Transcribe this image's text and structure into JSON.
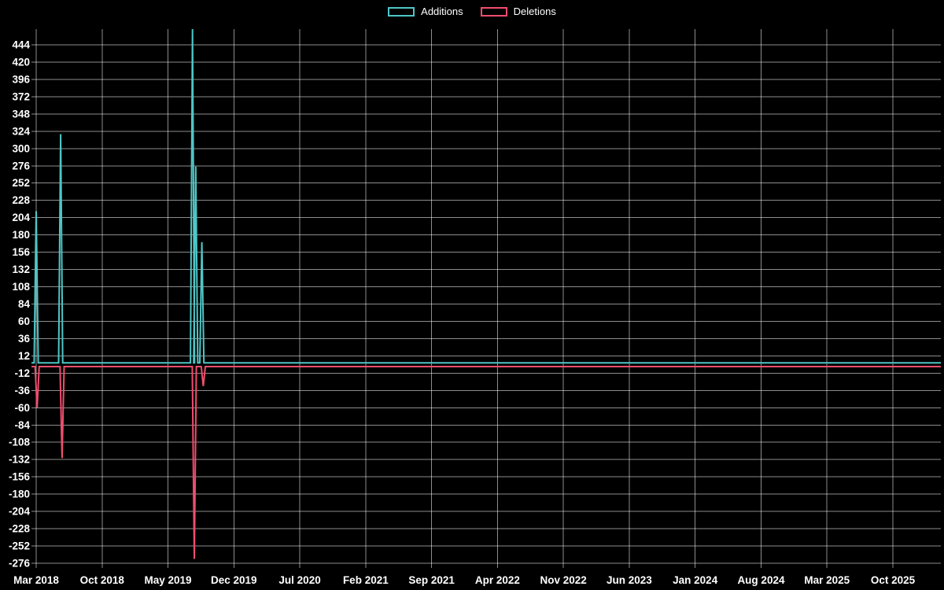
{
  "legend": {
    "items": [
      {
        "label": "Additions",
        "color": "#4fc6c6"
      },
      {
        "label": "Deletions",
        "color": "#ef4e6e"
      }
    ]
  },
  "chart_data": {
    "type": "line",
    "title": "",
    "background": "#000000",
    "grid": true,
    "legend_position": "top-center",
    "x_tick_labels": [
      "Mar 2018",
      "Oct 2018",
      "May 2019",
      "Dec 2019",
      "Jul 2020",
      "Feb 2021",
      "Sep 2021",
      "Apr 2022",
      "Nov 2022",
      "Jun 2023",
      "Jan 2024",
      "Aug 2024",
      "Mar 2025",
      "Oct 2025"
    ],
    "y_ticks": [
      444,
      420,
      396,
      372,
      348,
      324,
      300,
      276,
      252,
      228,
      204,
      180,
      156,
      132,
      108,
      84,
      60,
      36,
      12,
      -12,
      -36,
      -60,
      -84,
      -108,
      -132,
      -156,
      -180,
      -204,
      -228,
      -252,
      -276
    ],
    "ylim": [
      -282,
      466
    ],
    "y_tick_step": 24,
    "series": [
      {
        "name": "Additions",
        "color": "#4fc6c6",
        "baseline": 0,
        "events": [
          {
            "month": "Mar 2018",
            "offset": 0.0,
            "value": 213
          },
          {
            "month": "May 2018",
            "offset": 0.6,
            "value": 320
          },
          {
            "month": "Jul 2019",
            "offset": 0.6,
            "value": 466
          },
          {
            "month": "Jul 2019",
            "offset": 0.95,
            "value": 275
          },
          {
            "month": "Aug 2019",
            "offset": 0.6,
            "value": 170
          }
        ]
      },
      {
        "name": "Deletions",
        "color": "#ef4e6e",
        "baseline": 0,
        "events": [
          {
            "month": "Mar 2018",
            "offset": 0.1,
            "value": -60
          },
          {
            "month": "May 2018",
            "offset": 0.75,
            "value": -130
          },
          {
            "month": "Jul 2019",
            "offset": 0.8,
            "value": -270
          },
          {
            "month": "Aug 2019",
            "offset": 0.75,
            "value": -30
          }
        ]
      }
    ]
  }
}
